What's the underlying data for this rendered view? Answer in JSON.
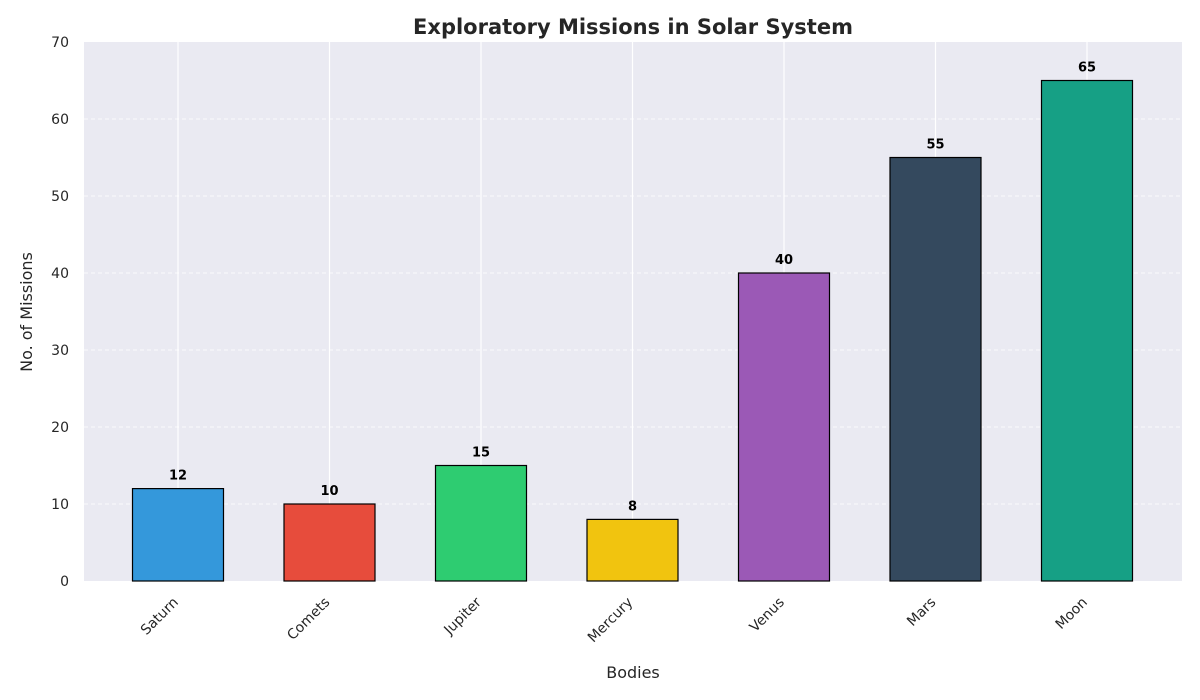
{
  "chart_data": {
    "type": "bar",
    "title": "Exploratory Missions in Solar System",
    "xlabel": "Bodies",
    "ylabel": "No. of Missions",
    "categories": [
      "Saturn",
      "Comets",
      "Jupiter",
      "Mercury",
      "Venus",
      "Mars",
      "Moon"
    ],
    "values": [
      12,
      10,
      15,
      8,
      40,
      55,
      65
    ],
    "value_labels": [
      "12",
      "10",
      "15",
      "8",
      "40",
      "55",
      "65"
    ],
    "colors": [
      "#3498db",
      "#e74c3c",
      "#2ecc71",
      "#f1c40f",
      "#9b59b6",
      "#34495e",
      "#16a085"
    ],
    "ylim": [
      0,
      70
    ],
    "yticks": [
      0,
      10,
      20,
      30,
      40,
      50,
      60,
      70
    ],
    "ytick_labels": [
      "0",
      "10",
      "20",
      "30",
      "40",
      "50",
      "60",
      "70"
    ],
    "grid": true,
    "plot_background": "#eaeaf2",
    "legend": "none"
  }
}
